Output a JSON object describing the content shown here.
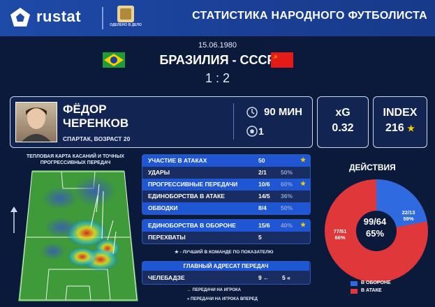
{
  "header": {
    "brand": "rustat",
    "partner_text": "ОДЕЛЕНО В ДЕЛО",
    "title": "СТАТИСТИКА НАРОДНОГО ФУТБОЛИСТА"
  },
  "match": {
    "date": "15.06.1980",
    "teams": "БРАЗИЛИЯ - СССР",
    "score": "1 : 2"
  },
  "player": {
    "name_line1": "ФЁДОР",
    "name_line2": "ЧЕРЕНКОВ",
    "team_age": "СПАРТАК, ВОЗРАСТ 20",
    "minutes": "90 МИН",
    "goals": "1"
  },
  "xg": {
    "label": "xG",
    "value": "0.32"
  },
  "index": {
    "label": "INDEX",
    "value": "216",
    "star": "★"
  },
  "heatmap": {
    "title": "ТЕПЛОВАЯ КАРТА КАСАНИЙ И ТОЧНЫХ ПРОГРЕССИВНЫХ ПЕРЕДАЧ"
  },
  "stats_attack": [
    {
      "label": "УЧАСТИЕ В АТАКАХ",
      "value": "50",
      "pct": "",
      "star": "★",
      "highlight": true
    },
    {
      "label": "УДАРЫ",
      "value": "2/1",
      "pct": "50%",
      "star": "",
      "highlight": false
    },
    {
      "label": "ПРОГРЕССИВНЫЕ ПЕРЕДАЧИ",
      "value": "10/6",
      "pct": "60%",
      "star": "★",
      "highlight": true
    },
    {
      "label": "ЕДИНОБОРСТВА В АТАКЕ",
      "value": "14/5",
      "pct": "36%",
      "star": "",
      "highlight": false
    },
    {
      "label": "ОБВОДКИ",
      "value": "8/4",
      "pct": "50%",
      "star": "",
      "highlight": true
    }
  ],
  "stats_defense": [
    {
      "label": "ЕДИНОБОРСТВА В ОБОРОНЕ",
      "value": "15/6",
      "pct": "40%",
      "star": "★",
      "highlight": true
    },
    {
      "label": "ПЕРЕХВАТЫ",
      "value": "5",
      "pct": "",
      "star": "",
      "highlight": false
    }
  ],
  "best_note": "★ - ЛУЧШИЙ В КОМАНДЕ ПО ПОКАЗАТЕЛЮ",
  "pass_target": {
    "title": "ГЛАВНЫЙ АДРЕСАТ ПЕРЕДАЧ",
    "name": "ЧЕЛЕБАДЗЕ",
    "passes": "9 ←",
    "forward_passes": "5 «"
  },
  "pass_legend": {
    "pass": "← ПЕРЕДАЧИ НА ИГРОКА",
    "forward": "« ПЕРЕДАЧИ НА ИГРОКА ВПЕРЕД"
  },
  "actions": {
    "title": "ДЕЙСТВИЯ",
    "total": "99/64",
    "total_pct": "65%",
    "defense_value": "22/13",
    "defense_pct": "59%",
    "attack_value": "77/51",
    "attack_pct": "66%",
    "defense_share": 0.22,
    "legend_defense": "В ОБОРОНЕ",
    "legend_attack": "В АТАКЕ",
    "colors": {
      "defense": "#2f6ae0",
      "attack": "#e0373b"
    }
  }
}
